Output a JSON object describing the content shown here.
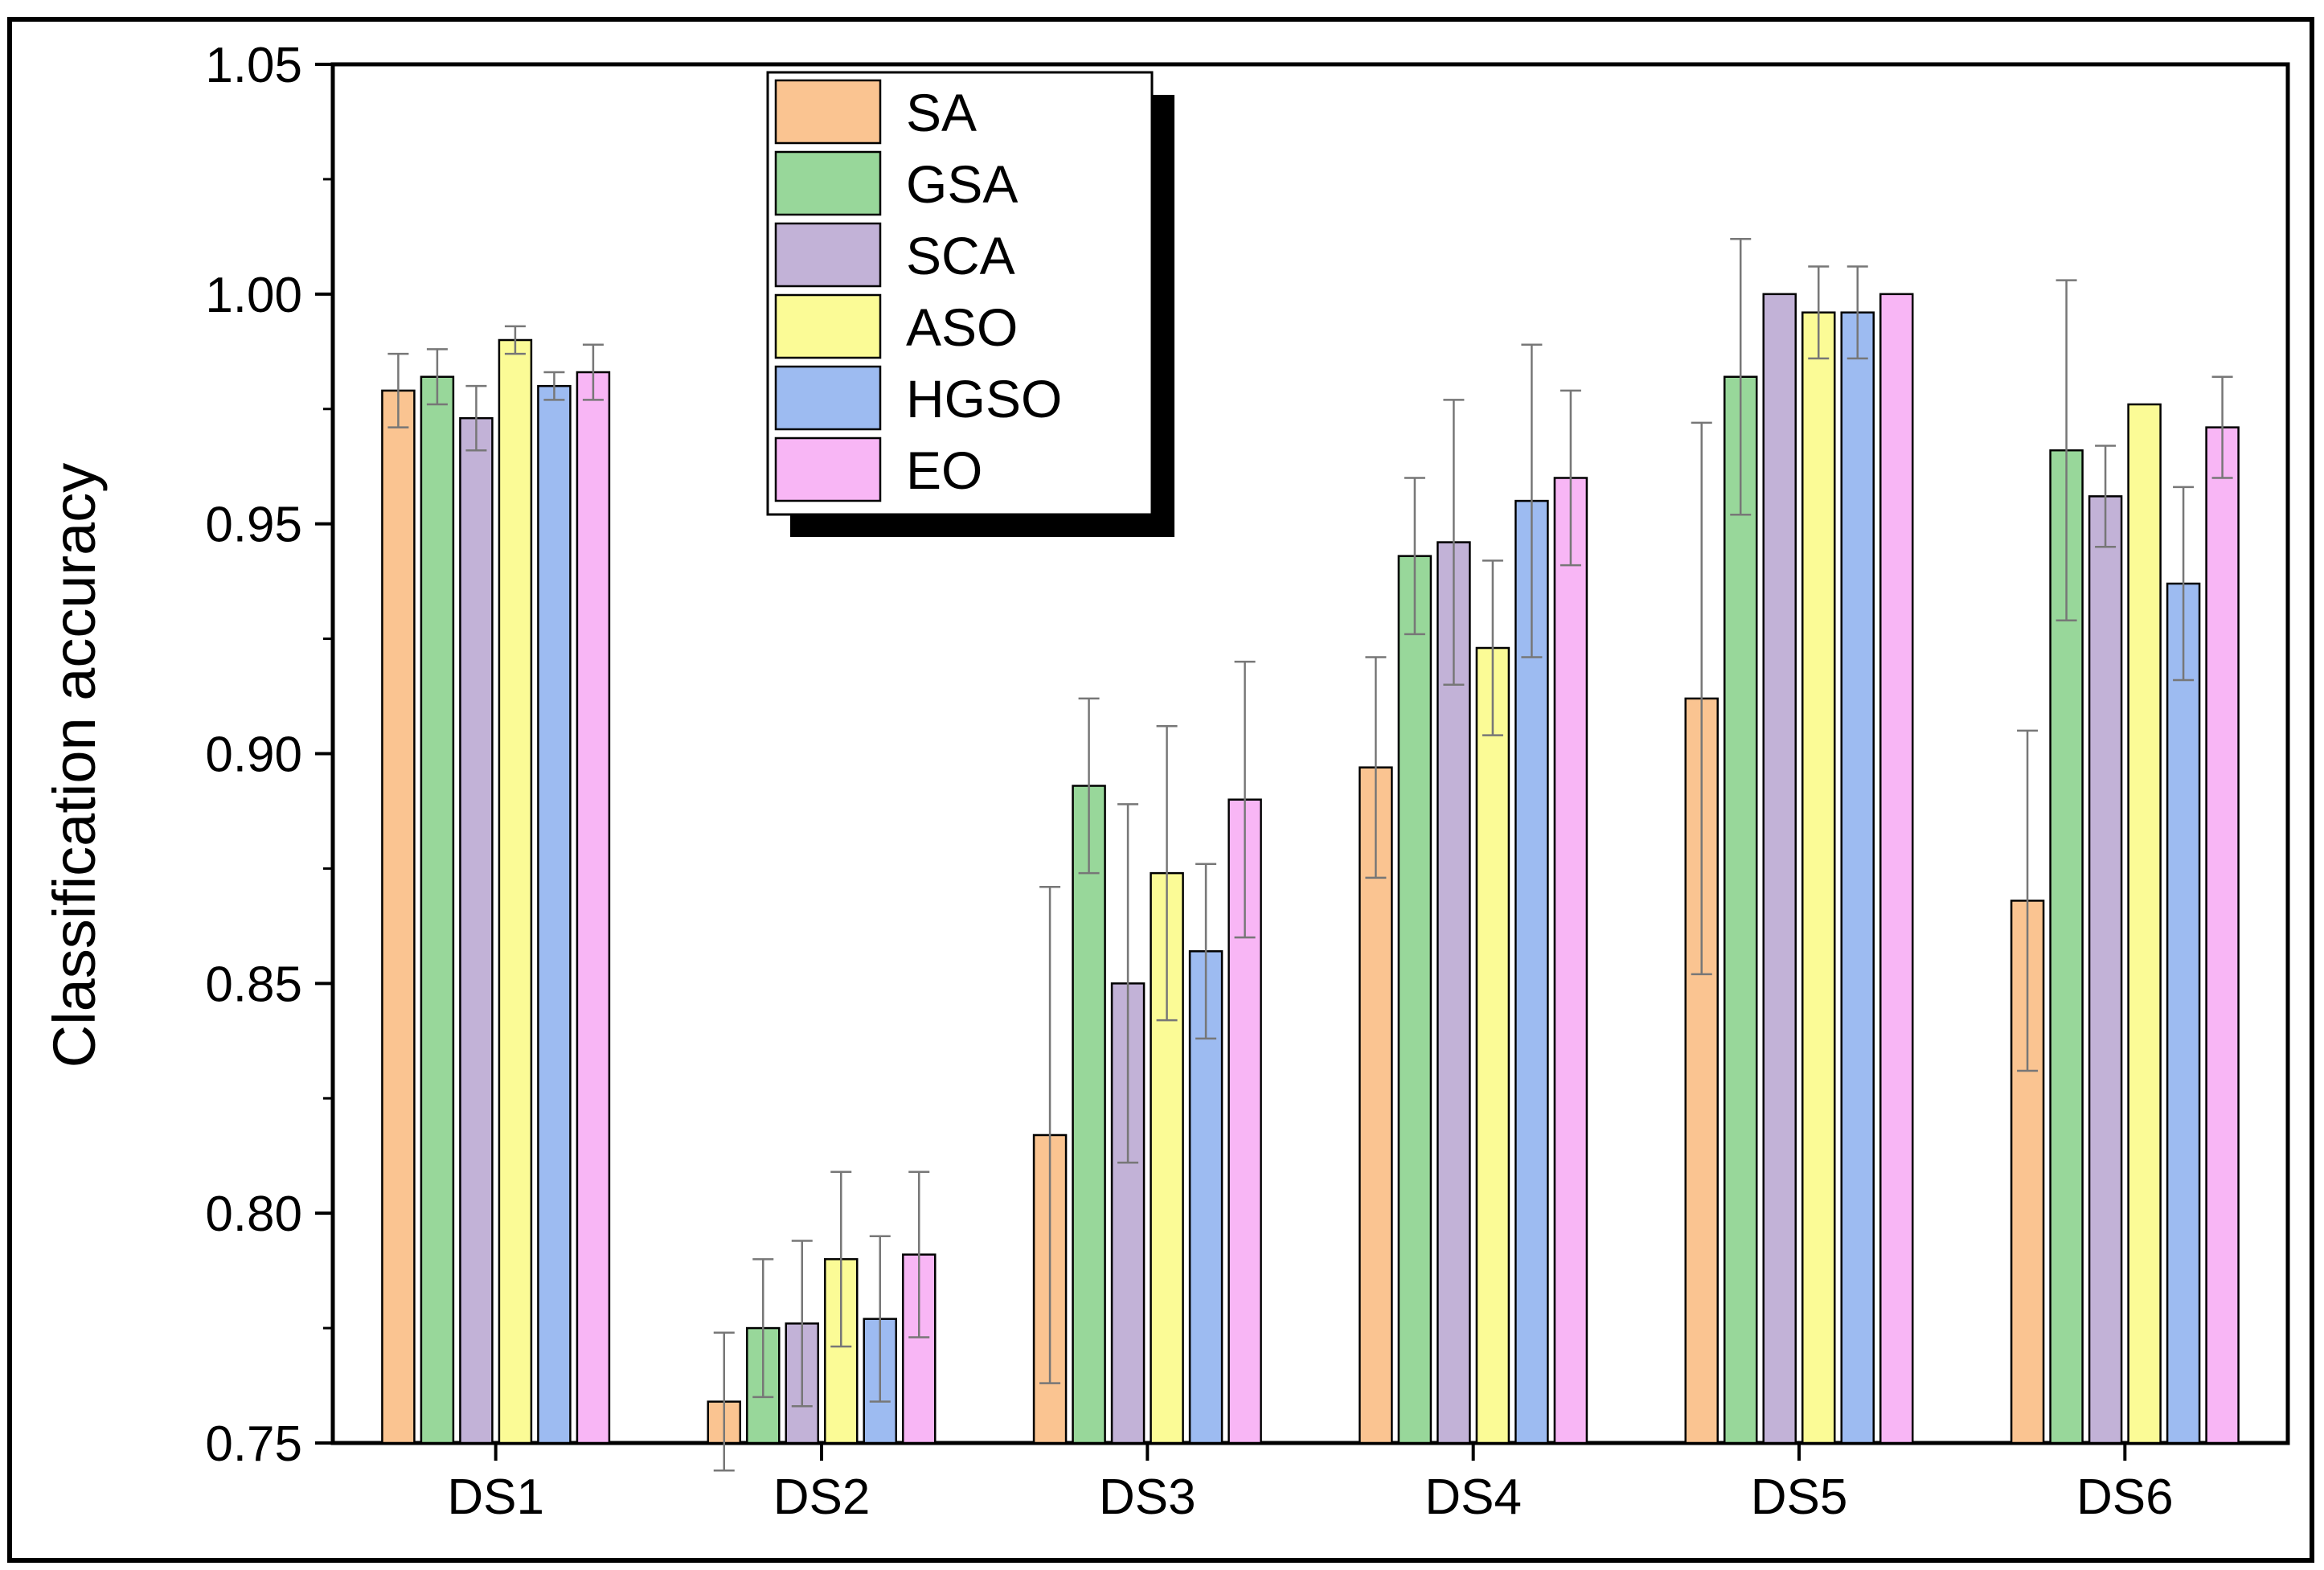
{
  "chart_data": {
    "type": "bar",
    "title": "",
    "xlabel": "",
    "ylabel": "Classification accuracy",
    "ylim": [
      0.75,
      1.05
    ],
    "yticks": [
      "0.75",
      "0.80",
      "0.85",
      "0.90",
      "0.95",
      "1.00",
      "1.05"
    ],
    "categories": [
      "DS1",
      "DS2",
      "DS3",
      "DS4",
      "DS5",
      "DS6"
    ],
    "legend_position": "top-left",
    "series": [
      {
        "name": "SA",
        "color": "#FAC491",
        "values": [
          0.979,
          0.759,
          0.817,
          0.897,
          0.912,
          0.868
        ],
        "errors": [
          0.008,
          0.015,
          0.054,
          0.024,
          0.06,
          0.037
        ]
      },
      {
        "name": "GSA",
        "color": "#98D79A",
        "values": [
          0.982,
          0.775,
          0.893,
          0.943,
          0.982,
          0.966
        ],
        "errors": [
          0.006,
          0.015,
          0.019,
          0.017,
          0.03,
          0.037
        ]
      },
      {
        "name": "SCA",
        "color": "#C2B2D7",
        "values": [
          0.973,
          0.776,
          0.85,
          0.946,
          1.0,
          0.956
        ],
        "errors": [
          0.007,
          0.018,
          0.039,
          0.031,
          0.0,
          0.011
        ]
      },
      {
        "name": "ASO",
        "color": "#FBFB96",
        "values": [
          0.99,
          0.79,
          0.874,
          0.923,
          0.996,
          0.976
        ],
        "errors": [
          0.003,
          0.019,
          0.032,
          0.019,
          0.01,
          0.0
        ]
      },
      {
        "name": "HGSO",
        "color": "#9DBBF1",
        "values": [
          0.98,
          0.777,
          0.857,
          0.955,
          0.996,
          0.937
        ],
        "errors": [
          0.003,
          0.018,
          0.019,
          0.034,
          0.01,
          0.021
        ]
      },
      {
        "name": "EO",
        "color": "#F8B6F5",
        "values": [
          0.983,
          0.791,
          0.89,
          0.96,
          1.0,
          0.971
        ],
        "errors": [
          0.006,
          0.018,
          0.03,
          0.019,
          0.0,
          0.011
        ]
      }
    ]
  }
}
